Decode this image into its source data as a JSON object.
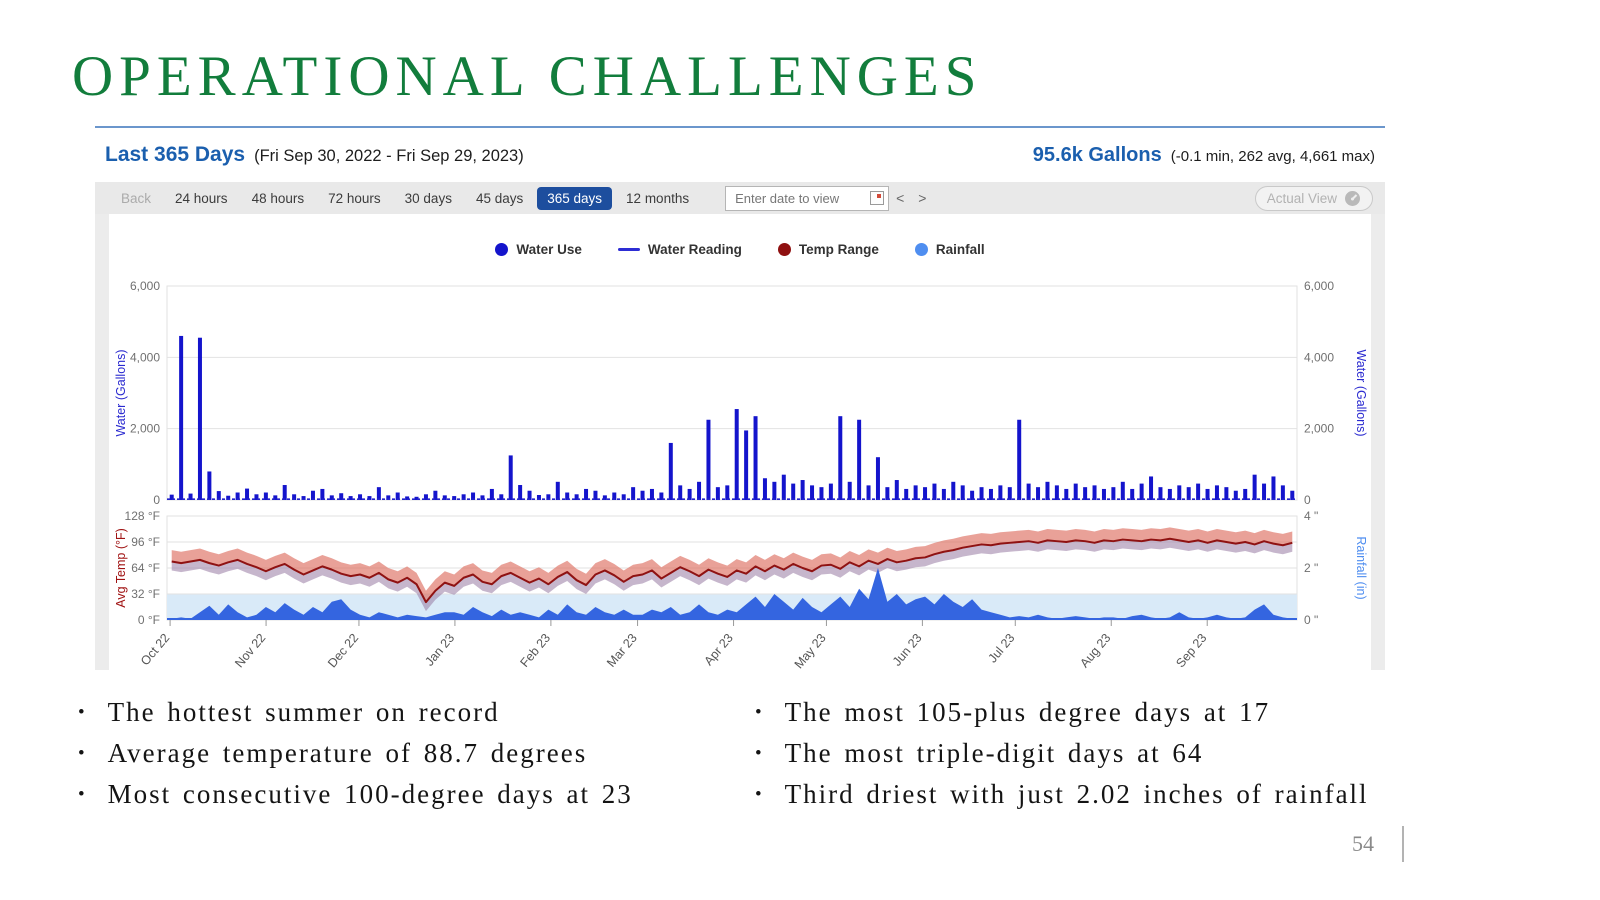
{
  "title": "OPERATIONAL CHALLENGES",
  "title_color": "#127d3c",
  "page_number": "54",
  "dashboard": {
    "header": {
      "range_title": "Last 365 Days",
      "range_dates": "(Fri Sep 30, 2022 - Fri Sep 29, 2023)",
      "total": "95.6k Gallons",
      "stats": "(-0.1 min, 262 avg, 4,661 max)",
      "accent_color": "#1b5fae"
    },
    "toolbar": {
      "buttons": [
        {
          "label": "Back",
          "state": "disabled"
        },
        {
          "label": "24 hours",
          "state": "normal"
        },
        {
          "label": "48 hours",
          "state": "normal"
        },
        {
          "label": "72 hours",
          "state": "normal"
        },
        {
          "label": "30 days",
          "state": "normal"
        },
        {
          "label": "45 days",
          "state": "normal"
        },
        {
          "label": "365 days",
          "state": "selected"
        },
        {
          "label": "12 months",
          "state": "normal"
        }
      ],
      "selected_bg": "#1d4e9e",
      "date_input_placeholder": "Enter date to view",
      "prev_label": "<",
      "next_label": ">",
      "actual_view_label": "Actual View"
    },
    "legend": {
      "items": [
        {
          "label": "Water Use",
          "swatch": "dot",
          "color": "#1414cc"
        },
        {
          "label": "Water Reading",
          "swatch": "line",
          "color": "#2d2dd4"
        },
        {
          "label": "Temp Range",
          "swatch": "dot",
          "color": "#8f1010"
        },
        {
          "label": "Rainfall",
          "swatch": "dot",
          "color": "#4f8ef0"
        }
      ]
    }
  },
  "chart_data": [
    {
      "type": "bar",
      "title": "Water Use - Last 365 Days",
      "ylabel_left": "Water (Gallons)",
      "ylabel_right": "Water (Gallons)",
      "ylim": [
        0,
        6000
      ],
      "ytick_labels": [
        "0",
        "2,000",
        "4,000",
        "6,000"
      ],
      "bar_color": "#1414cc",
      "baseline_color": "#2222cc",
      "bin_days": 3,
      "x_ticks": [
        {
          "label": "Oct 22",
          "day": 1
        },
        {
          "label": "Nov 22",
          "day": 32
        },
        {
          "label": "Dec 22",
          "day": 62
        },
        {
          "label": "Jan 23",
          "day": 93
        },
        {
          "label": "Feb 23",
          "day": 124
        },
        {
          "label": "Mar 23",
          "day": 152
        },
        {
          "label": "Apr 23",
          "day": 183
        },
        {
          "label": "May 23",
          "day": 213
        },
        {
          "label": "Jun 23",
          "day": 244
        },
        {
          "label": "Jul 23",
          "day": 274
        },
        {
          "label": "Aug 23",
          "day": 305
        },
        {
          "label": "Sep 23",
          "day": 336
        }
      ],
      "values": [
        150,
        4600,
        180,
        4550,
        800,
        250,
        120,
        210,
        320,
        160,
        210,
        130,
        420,
        160,
        110,
        260,
        310,
        130,
        190,
        110,
        160,
        110,
        360,
        130,
        210,
        100,
        90,
        160,
        260,
        130,
        110,
        160,
        210,
        130,
        310,
        160,
        1250,
        420,
        260,
        140,
        160,
        510,
        210,
        160,
        310,
        260,
        130,
        210,
        160,
        360,
        260,
        310,
        210,
        1600,
        410,
        310,
        510,
        2250,
        360,
        410,
        2550,
        1950,
        2350,
        610,
        510,
        710,
        460,
        560,
        410,
        360,
        460,
        2350,
        510,
        2250,
        410,
        1200,
        360,
        560,
        310,
        410,
        360,
        460,
        310,
        510,
        410,
        260,
        360,
        310,
        410,
        360,
        2250,
        460,
        360,
        510,
        410,
        310,
        460,
        360,
        410,
        310,
        360,
        510,
        310,
        460,
        660,
        360,
        310,
        410,
        360,
        460,
        310,
        410,
        360,
        260,
        310,
        710,
        460,
        660,
        410,
        260
      ]
    },
    {
      "type": "area+line",
      "title": "Temp Range and Rainfall",
      "ylabel_left": "Avg Temp (°F)",
      "ylabel_right": "Rainfall (in)",
      "ylim_left": [
        0,
        128
      ],
      "ytick_labels_left": [
        "0 °F",
        "32 °F",
        "64 °F",
        "96 °F",
        "128 °F"
      ],
      "ylim_right": [
        0,
        4
      ],
      "ytick_labels_right": [
        "0 \"",
        "2 \"",
        "4 \""
      ],
      "temp_line_color": "#8f1212",
      "band_upper_color": "rgba(219,104,88,0.62)",
      "band_lower_color": "rgba(152,122,162,0.55)",
      "band_upper_offset": 14,
      "band_lower_offset": 11,
      "rain_color": "#3465e0",
      "rain_bg_color": "#d9eaf8",
      "rain_bg_band_in": [
        0,
        1
      ],
      "avg_temp": [
        72,
        70,
        72,
        74,
        70,
        67,
        71,
        74,
        69,
        65,
        60,
        65,
        69,
        62,
        56,
        61,
        66,
        62,
        57,
        54,
        56,
        52,
        58,
        50,
        46,
        52,
        44,
        22,
        36,
        46,
        42,
        52,
        56,
        47,
        44,
        54,
        58,
        52,
        46,
        51,
        44,
        53,
        59,
        49,
        43,
        56,
        61,
        55,
        47,
        54,
        56,
        61,
        51,
        58,
        65,
        60,
        54,
        62,
        57,
        53,
        61,
        57,
        66,
        60,
        67,
        62,
        69,
        64,
        60,
        67,
        68,
        63,
        71,
        66,
        73,
        69,
        75,
        71,
        73,
        76,
        77,
        81,
        84,
        86,
        89,
        91,
        93,
        92,
        94,
        95,
        96,
        97,
        95,
        98,
        97,
        96,
        98,
        97,
        95,
        98,
        97,
        99,
        98,
        97,
        99,
        98,
        100,
        98,
        96,
        98,
        95,
        98,
        96,
        94,
        96,
        93,
        97,
        94,
        92,
        95
      ],
      "rainfall_in": [
        0.05,
        0.1,
        0.05,
        0.3,
        0.55,
        0.2,
        0.6,
        0.3,
        0.1,
        0.2,
        0.5,
        0.3,
        0.65,
        0.4,
        0.2,
        0.5,
        0.3,
        0.7,
        0.8,
        0.4,
        0.2,
        0.1,
        0.3,
        0.2,
        0.1,
        0.2,
        0.15,
        0.1,
        0.2,
        0.3,
        0.3,
        0.2,
        0.5,
        0.3,
        0.15,
        0.4,
        0.2,
        0.3,
        0.2,
        0.1,
        0.4,
        0.2,
        0.6,
        0.3,
        0.2,
        0.5,
        0.3,
        0.2,
        0.4,
        0.2,
        0.2,
        0.4,
        0.3,
        0.5,
        0.2,
        0.3,
        0.6,
        0.3,
        0.2,
        0.4,
        0.3,
        0.6,
        0.9,
        0.5,
        1.0,
        0.7,
        0.4,
        0.85,
        0.5,
        0.3,
        0.6,
        0.9,
        0.5,
        1.2,
        0.8,
        2.0,
        0.7,
        1.0,
        0.6,
        0.8,
        0.9,
        0.6,
        1.0,
        0.7,
        0.5,
        0.8,
        0.4,
        0.3,
        0.2,
        0.1,
        0.15,
        0.1,
        0.2,
        0.1,
        0.05,
        0.1,
        0.15,
        0.1,
        0.05,
        0.1,
        0.1,
        0.05,
        0.15,
        0.2,
        0.1,
        0.05,
        0.1,
        0.3,
        0.1,
        0.05,
        0.1,
        0.2,
        0.1,
        0.05,
        0.1,
        0.4,
        0.6,
        0.2,
        0.1,
        0.05
      ]
    }
  ],
  "bullets": {
    "left": [
      "The hottest summer on record",
      "Average temperature of 88.7 degrees",
      "Most consecutive 100-degree days at 23"
    ],
    "right": [
      "The most 105-plus degree days at 17",
      "The most triple-digit days at 64",
      "Third driest with just 2.02 inches of rainfall"
    ]
  }
}
